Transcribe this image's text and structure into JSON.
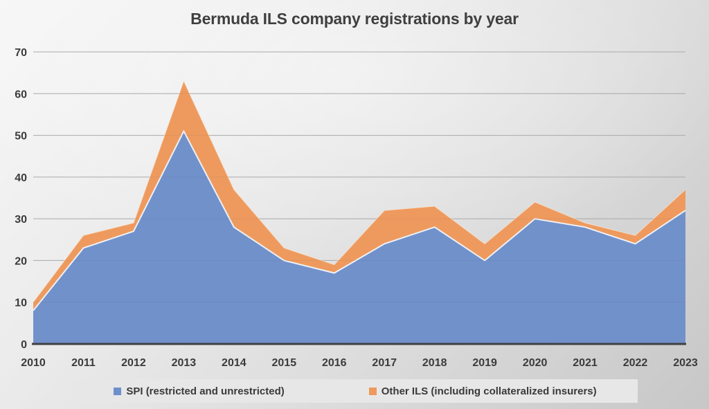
{
  "title": "Bermuda ILS company registrations by year",
  "colors": {
    "spi_fill": "#7191CB",
    "other_fill": "#EE9A5E",
    "spi_edge": "#EDF1F7",
    "other_edge": "#F6E3D2",
    "gridline": "#b4b4b4",
    "gridline_overlay": "rgba(90,90,90,0.10)",
    "axis_line": "#404040",
    "label_text": "#3b3b3b",
    "legend_strip_bg": "#e7e7e7"
  },
  "legend": {
    "items": [
      {
        "label": "SPI (restricted and unrestricted)",
        "color": "#6E8FCB"
      },
      {
        "label": "Other ILS (including collateralized insurers)",
        "color": "#ED9A5C"
      }
    ]
  },
  "chart_data": {
    "type": "area",
    "stacked": true,
    "title": "Bermuda ILS company registrations by year",
    "categories": [
      "2010",
      "2011",
      "2012",
      "2013",
      "2014",
      "2015",
      "2016",
      "2017",
      "2018",
      "2019",
      "2020",
      "2021",
      "2022",
      "2023"
    ],
    "series": [
      {
        "name": "SPI (restricted and unrestricted)",
        "values": [
          8,
          23,
          27,
          51,
          28,
          20,
          17,
          24,
          28,
          20,
          30,
          28,
          24,
          32
        ]
      },
      {
        "name": "Other ILS (including collateralized insurers)",
        "values": [
          2,
          3,
          2,
          12,
          9,
          3,
          2,
          8,
          5,
          4,
          4,
          1,
          2,
          5
        ]
      }
    ],
    "stacked_totals": [
      10,
      26,
      29,
      63,
      37,
      23,
      19,
      32,
      33,
      24,
      34,
      29,
      26,
      37
    ],
    "xlabel": "",
    "ylabel": "",
    "ylim": [
      0,
      70
    ],
    "y_ticks": [
      0,
      10,
      20,
      30,
      40,
      50,
      60,
      70
    ],
    "grid": true,
    "legend_position": "bottom"
  }
}
